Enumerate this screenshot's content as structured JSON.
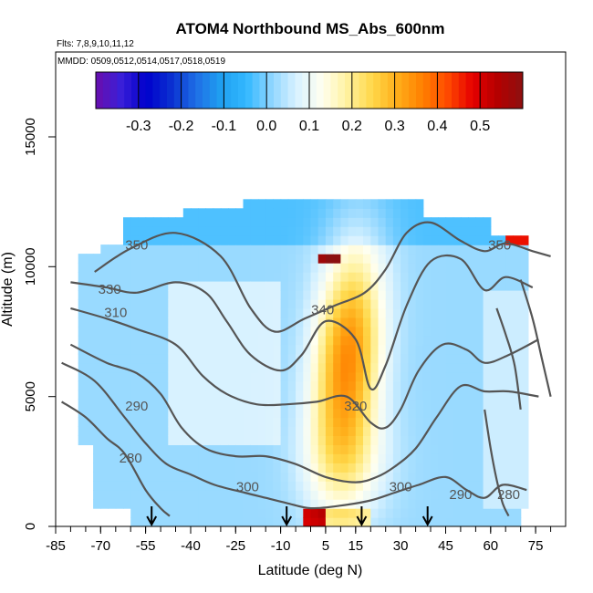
{
  "chart_data": {
    "type": "heatmap",
    "title": "ATOM4 Northbound MS_Abs_600nm",
    "flights_note": "Flts: 7,8,9,10,11,12",
    "mmdd_note": "MMDD: 0509,0512,0514,0517,0518,0519",
    "xlabel": "Latitude (deg N)",
    "ylabel": "Altitude (m)",
    "xlim": [
      -85,
      85
    ],
    "ylim": [
      0,
      17000
    ],
    "x_ticks": [
      -85,
      -70,
      -55,
      -40,
      -25,
      -10,
      5,
      15,
      30,
      45,
      60,
      75
    ],
    "y_ticks": [
      0,
      5000,
      10000,
      15000
    ],
    "colorbar": {
      "range": [
        -0.4,
        0.6
      ],
      "tick_values": [
        -0.3,
        -0.2,
        -0.1,
        0.0,
        0.1,
        0.2,
        0.3,
        0.4,
        0.5
      ],
      "tick_labels": [
        "-0.3",
        "-0.2",
        "-0.1",
        "0.0",
        "0.1",
        "0.2",
        "0.3",
        "0.4",
        "0.5"
      ],
      "palette": [
        "#6a0dad",
        "#3a1fd8",
        "#0000cc",
        "#0a2fd0",
        "#1f6fe6",
        "#1fa0f0",
        "#33b8ff",
        "#8fd6ff",
        "#d9f2ff",
        "#fffff0",
        "#fff2a0",
        "#ffd84a",
        "#ffae1a",
        "#ff8000",
        "#ff4a00",
        "#e60000",
        "#b40000",
        "#8c1010"
      ]
    },
    "contour_labels": [
      {
        "text": "350",
        "lat": -58,
        "alt": 10800
      },
      {
        "text": "330",
        "lat": -67,
        "alt": 9100
      },
      {
        "text": "310",
        "lat": -65,
        "alt": 8200
      },
      {
        "text": "290",
        "lat": -58,
        "alt": 4600
      },
      {
        "text": "280",
        "lat": -60,
        "alt": 2600
      },
      {
        "text": "300",
        "lat": -21,
        "alt": 1500
      },
      {
        "text": "340",
        "lat": 4,
        "alt": 8300
      },
      {
        "text": "320",
        "lat": 15,
        "alt": 4600
      },
      {
        "text": "300",
        "lat": 30,
        "alt": 1500
      },
      {
        "text": "290",
        "lat": 50,
        "alt": 1200
      },
      {
        "text": "280",
        "lat": 66,
        "alt": 1200
      },
      {
        "text": "350",
        "lat": 63,
        "alt": 10800
      }
    ],
    "arrow_latitudes": [
      -53,
      -8,
      17,
      39
    ],
    "contour_color": "#555555"
  }
}
